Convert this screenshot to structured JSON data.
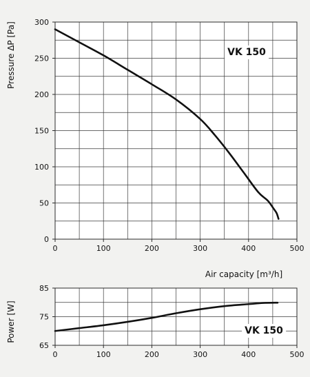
{
  "chart_data": [
    {
      "type": "line",
      "ylabel": "Pressure ΔP [Pa]",
      "xlabel": "Air capacity [m³/h]",
      "xlim": [
        0,
        500
      ],
      "ylim": [
        0,
        300
      ],
      "x_ticks": [
        0,
        100,
        200,
        300,
        400,
        500
      ],
      "y_ticks": [
        0,
        50,
        100,
        150,
        200,
        250,
        300
      ],
      "grid": true,
      "series": [
        {
          "name": "VK 150",
          "x": [
            0,
            50,
            100,
            150,
            200,
            250,
            300,
            330,
            360,
            390,
            420,
            440,
            452,
            458,
            462
          ],
          "y": [
            290,
            272,
            254,
            234,
            214,
            193,
            166,
            144,
            119,
            92,
            65,
            53,
            42,
            36,
            28
          ]
        }
      ]
    },
    {
      "type": "line",
      "ylabel": "Power [W]",
      "xlim": [
        0,
        500
      ],
      "ylim": [
        65,
        85
      ],
      "x_ticks": [
        0,
        100,
        200,
        300,
        400,
        500
      ],
      "y_ticks": [
        65,
        75,
        85
      ],
      "grid": true,
      "series": [
        {
          "name": "VK 150",
          "x": [
            0,
            50,
            100,
            150,
            200,
            250,
            300,
            350,
            400,
            430,
            460
          ],
          "y": [
            70,
            71,
            72,
            73.2,
            74.6,
            76.2,
            77.6,
            78.7,
            79.4,
            79.8,
            79.9
          ]
        }
      ]
    }
  ]
}
